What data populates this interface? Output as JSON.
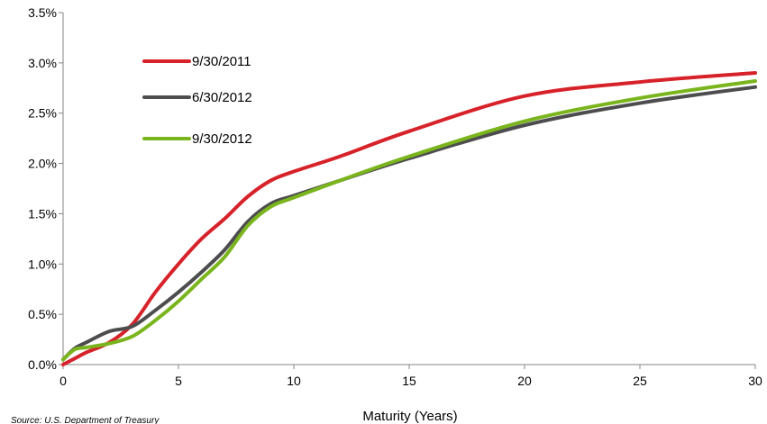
{
  "chart_data": {
    "type": "line",
    "title": "",
    "xlabel": "Maturity (Years)",
    "ylabel": "",
    "xlim": [
      0,
      30
    ],
    "ylim": [
      0,
      3.5
    ],
    "x_ticks": [
      0,
      5,
      10,
      15,
      20,
      25,
      30
    ],
    "y_ticks": [
      0,
      0.5,
      1.0,
      1.5,
      2.0,
      2.5,
      3.0,
      3.5
    ],
    "x_tick_labels": [
      "0",
      "5",
      "10",
      "15",
      "20",
      "25",
      "30"
    ],
    "y_tick_labels": [
      "0.0%",
      "0.5%",
      "1.0%",
      "1.5%",
      "2.0%",
      "2.5%",
      "3.0%",
      "3.5%"
    ],
    "y_unit": "%",
    "grid": false,
    "legend_position": "top-left",
    "series": [
      {
        "name": "9/30/2011",
        "color": "#d7222a",
        "x": [
          0,
          0.5,
          1,
          2,
          3,
          4,
          5,
          6,
          7,
          8,
          9,
          10,
          12,
          15,
          20,
          25,
          30
        ],
        "y": [
          0.0,
          0.06,
          0.12,
          0.22,
          0.4,
          0.72,
          1.0,
          1.25,
          1.45,
          1.67,
          1.83,
          1.92,
          2.07,
          2.32,
          2.67,
          2.81,
          2.9
        ]
      },
      {
        "name": "6/30/2012",
        "color": "#4d4d4f",
        "x": [
          0,
          0.5,
          1,
          2,
          3,
          4,
          5,
          6,
          7,
          8,
          9,
          10,
          12,
          15,
          20,
          25,
          30
        ],
        "y": [
          0.05,
          0.16,
          0.22,
          0.33,
          0.38,
          0.54,
          0.72,
          0.92,
          1.14,
          1.42,
          1.6,
          1.68,
          1.83,
          2.05,
          2.38,
          2.6,
          2.76
        ]
      },
      {
        "name": "9/30/2012",
        "color": "#7ab51d",
        "x": [
          0,
          0.5,
          1,
          2,
          3,
          4,
          5,
          6,
          7,
          8,
          9,
          10,
          12,
          15,
          20,
          25,
          30
        ],
        "y": [
          0.05,
          0.15,
          0.17,
          0.21,
          0.28,
          0.44,
          0.63,
          0.85,
          1.07,
          1.38,
          1.57,
          1.66,
          1.83,
          2.07,
          2.42,
          2.65,
          2.82
        ]
      }
    ],
    "source_note": "Source: U.S. Department of Treasury"
  }
}
